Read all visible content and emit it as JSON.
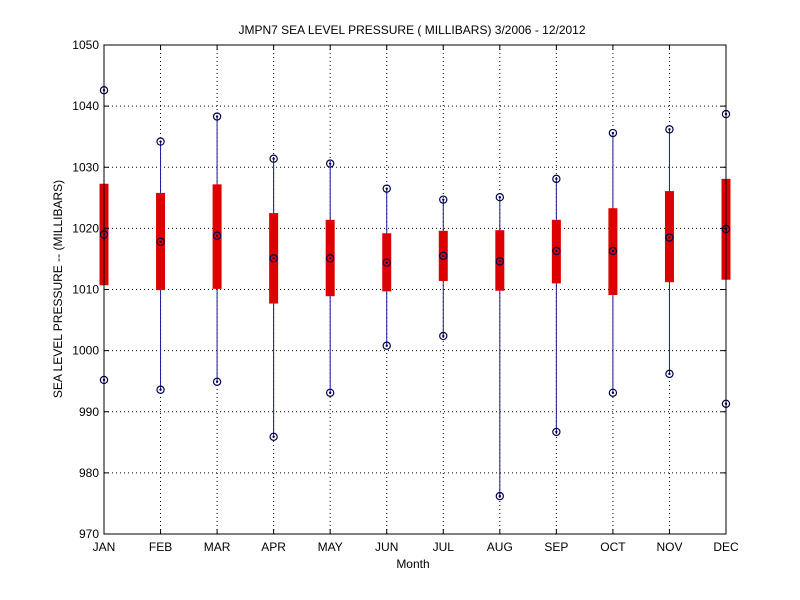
{
  "chart_data": {
    "type": "boxplot",
    "title": "JMPN7  SEA LEVEL PRESSURE ( MILLIBARS) 3/2006 - 12/2012",
    "xlabel": "Month",
    "ylabel": "SEA LEVEL PRESSURE -- (MILLIBARS)",
    "ylim": [
      970,
      1050
    ],
    "yticks": [
      970,
      980,
      990,
      1000,
      1010,
      1020,
      1030,
      1040,
      1050
    ],
    "grid": true,
    "categories": [
      "JAN",
      "FEB",
      "MAR",
      "APR",
      "MAY",
      "JUN",
      "JUL",
      "AUG",
      "SEP",
      "OCT",
      "NOV",
      "DEC"
    ],
    "series": [
      {
        "category": "JAN",
        "min": 995.2,
        "q1": 1010.7,
        "median": 1019.0,
        "q3": 1027.3,
        "max": 1042.6
      },
      {
        "category": "FEB",
        "min": 993.6,
        "q1": 1009.9,
        "median": 1017.8,
        "q3": 1025.8,
        "max": 1034.2
      },
      {
        "category": "MAR",
        "min": 994.9,
        "q1": 1010.1,
        "median": 1018.8,
        "q3": 1027.2,
        "max": 1038.3
      },
      {
        "category": "APR",
        "min": 985.9,
        "q1": 1007.7,
        "median": 1015.1,
        "q3": 1022.5,
        "max": 1031.4
      },
      {
        "category": "MAY",
        "min": 993.1,
        "q1": 1008.9,
        "median": 1015.1,
        "q3": 1021.4,
        "max": 1030.6
      },
      {
        "category": "JUN",
        "min": 1000.8,
        "q1": 1009.7,
        "median": 1014.4,
        "q3": 1019.2,
        "max": 1026.5
      },
      {
        "category": "JUL",
        "min": 1002.4,
        "q1": 1011.4,
        "median": 1015.5,
        "q3": 1019.6,
        "max": 1024.7
      },
      {
        "category": "AUG",
        "min": 976.2,
        "q1": 1009.8,
        "median": 1014.6,
        "q3": 1019.7,
        "max": 1025.1
      },
      {
        "category": "SEP",
        "min": 986.7,
        "q1": 1011.0,
        "median": 1016.3,
        "q3": 1021.4,
        "max": 1028.1
      },
      {
        "category": "OCT",
        "min": 993.1,
        "q1": 1009.1,
        "median": 1016.3,
        "q3": 1023.3,
        "max": 1035.6
      },
      {
        "category": "NOV",
        "min": 996.2,
        "q1": 1011.2,
        "median": 1018.5,
        "q3": 1026.1,
        "max": 1036.2
      },
      {
        "category": "DEC",
        "min": 991.3,
        "q1": 1011.6,
        "median": 1019.9,
        "q3": 1028.1,
        "max": 1038.7
      }
    ],
    "colors": {
      "box": "#dd0000",
      "whisker": "#1a1aa0",
      "marker": "#000050",
      "grid": "#000000",
      "axis": "#000000"
    }
  }
}
